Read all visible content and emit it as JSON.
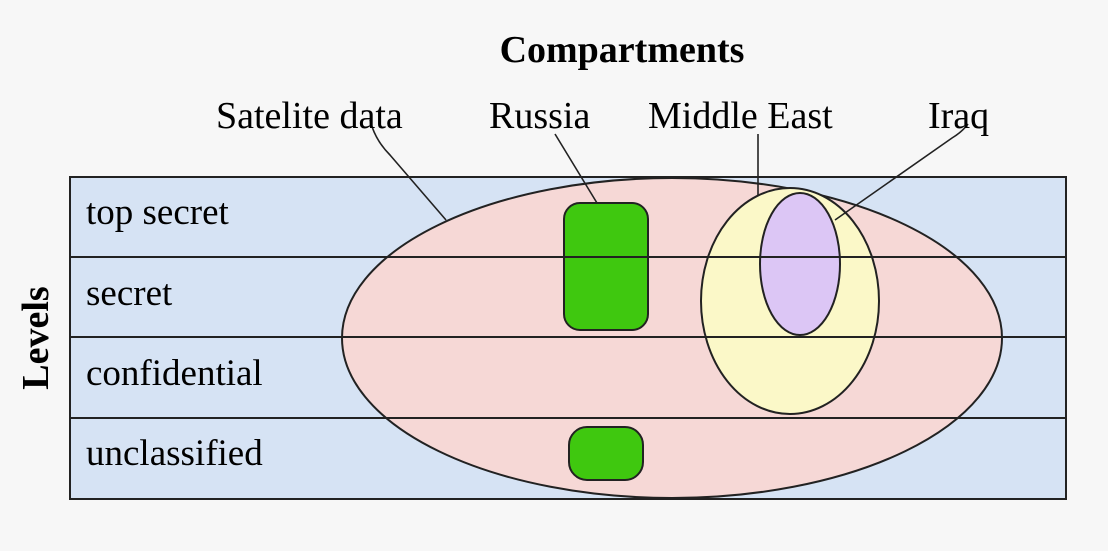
{
  "title": "Compartments",
  "axis_label": "Levels",
  "levels": [
    "top secret",
    "secret",
    "confidential",
    "unclassified"
  ],
  "compartments": [
    "Satelite data",
    "Russia",
    "Middle East",
    "Iraq"
  ],
  "colors": {
    "background": "#f7f7f7",
    "level_band": "#d6e3f4",
    "satellite_region": "#f6d8d6",
    "russia_region": "#3fc80f",
    "middle_east_region": "#fbf8c8",
    "iraq_region": "#dcc6f5",
    "lines": "#222222"
  }
}
